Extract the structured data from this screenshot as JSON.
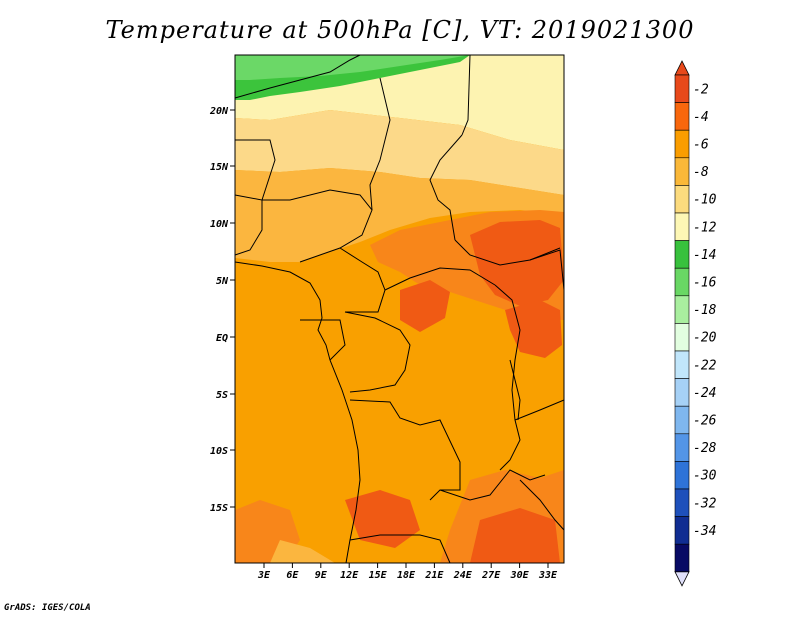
{
  "title": "Temperature at 500hPa [C], VT: 2019021300",
  "credit": "GrADS: IGES/COLA",
  "map": {
    "lat_ticks": [
      "20N",
      "15N",
      "10N",
      "5N",
      "EQ",
      "5S",
      "10S",
      "15S"
    ],
    "lon_ticks": [
      "3E",
      "6E",
      "9E",
      "12E",
      "15E",
      "18E",
      "21E",
      "24E",
      "27E",
      "30E",
      "33E"
    ]
  },
  "colorbar": {
    "labels": [
      "-2",
      "-4",
      "-6",
      "-8",
      "-10",
      "-12",
      "-14",
      "-16",
      "-18",
      "-20",
      "-22",
      "-24",
      "-26",
      "-28",
      "-30",
      "-32",
      "-34"
    ],
    "colors": [
      "#e8491b",
      "#f8670d",
      "#fa9d00",
      "#fab839",
      "#fcdb7e",
      "#fdf7b5",
      "#38c13d",
      "#69d764",
      "#a9ef9f",
      "#e2fee0",
      "#c1e6fb",
      "#a6d1f6",
      "#7fb7ef",
      "#5395e7",
      "#2e73d8",
      "#1e50bb",
      "#102d92",
      "#080a64"
    ],
    "over_color": "#e8491b",
    "under_color": "#e0e0fa"
  },
  "field_colors": {
    "hot": "#f05a14",
    "warm": "#f8861a",
    "mid": "#f9a000",
    "tan": "#fbb63f",
    "light": "#fcd989",
    "pale": "#fdf3b1",
    "green": "#3cc43c",
    "lightgreen": "#6bd867"
  }
}
